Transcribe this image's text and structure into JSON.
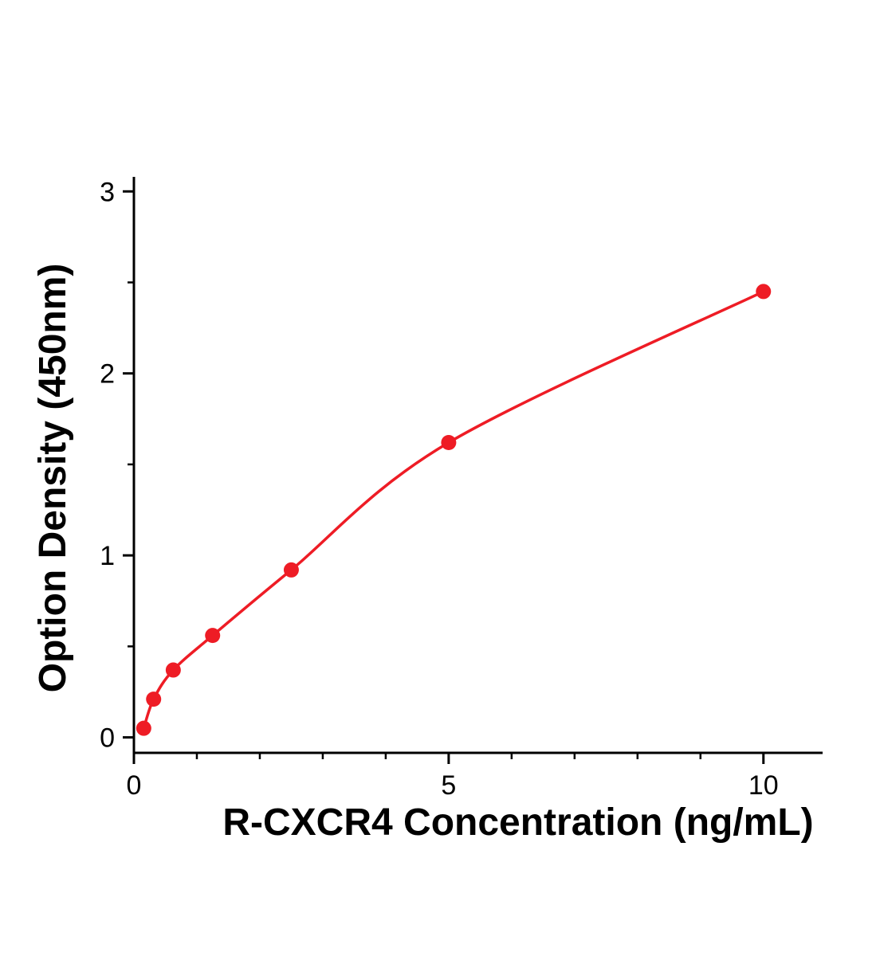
{
  "chart_data": {
    "type": "scatter",
    "title": "",
    "xlabel": "R-CXCR4 Concentration (ng/mL)",
    "ylabel": "Option Density (450nm)",
    "x": [
      0.156,
      0.313,
      0.625,
      1.25,
      2.5,
      5,
      10
    ],
    "y": [
      0.05,
      0.21,
      0.37,
      0.56,
      0.92,
      1.62,
      2.45
    ],
    "fit_curve": "smooth monotone curve through data points",
    "x_axis": {
      "min": 0,
      "max": 10.94,
      "major_ticks": [
        0,
        5,
        10
      ],
      "tick_labels": [
        "0",
        "5",
        "10"
      ],
      "minor_ticks": [
        1,
        2,
        3,
        4,
        6,
        7,
        8,
        9
      ]
    },
    "y_axis": {
      "min": -0.085,
      "max": 3.08,
      "major_ticks": [
        0,
        1,
        2,
        3
      ],
      "tick_labels": [
        "0",
        "1",
        "2",
        "3"
      ],
      "minor_ticks": [
        0.5,
        1.5,
        2.5
      ]
    },
    "grid": false,
    "legend": null,
    "colors": {
      "series": "#ee1c25",
      "axis": "#000000",
      "background": "#ffffff"
    }
  }
}
